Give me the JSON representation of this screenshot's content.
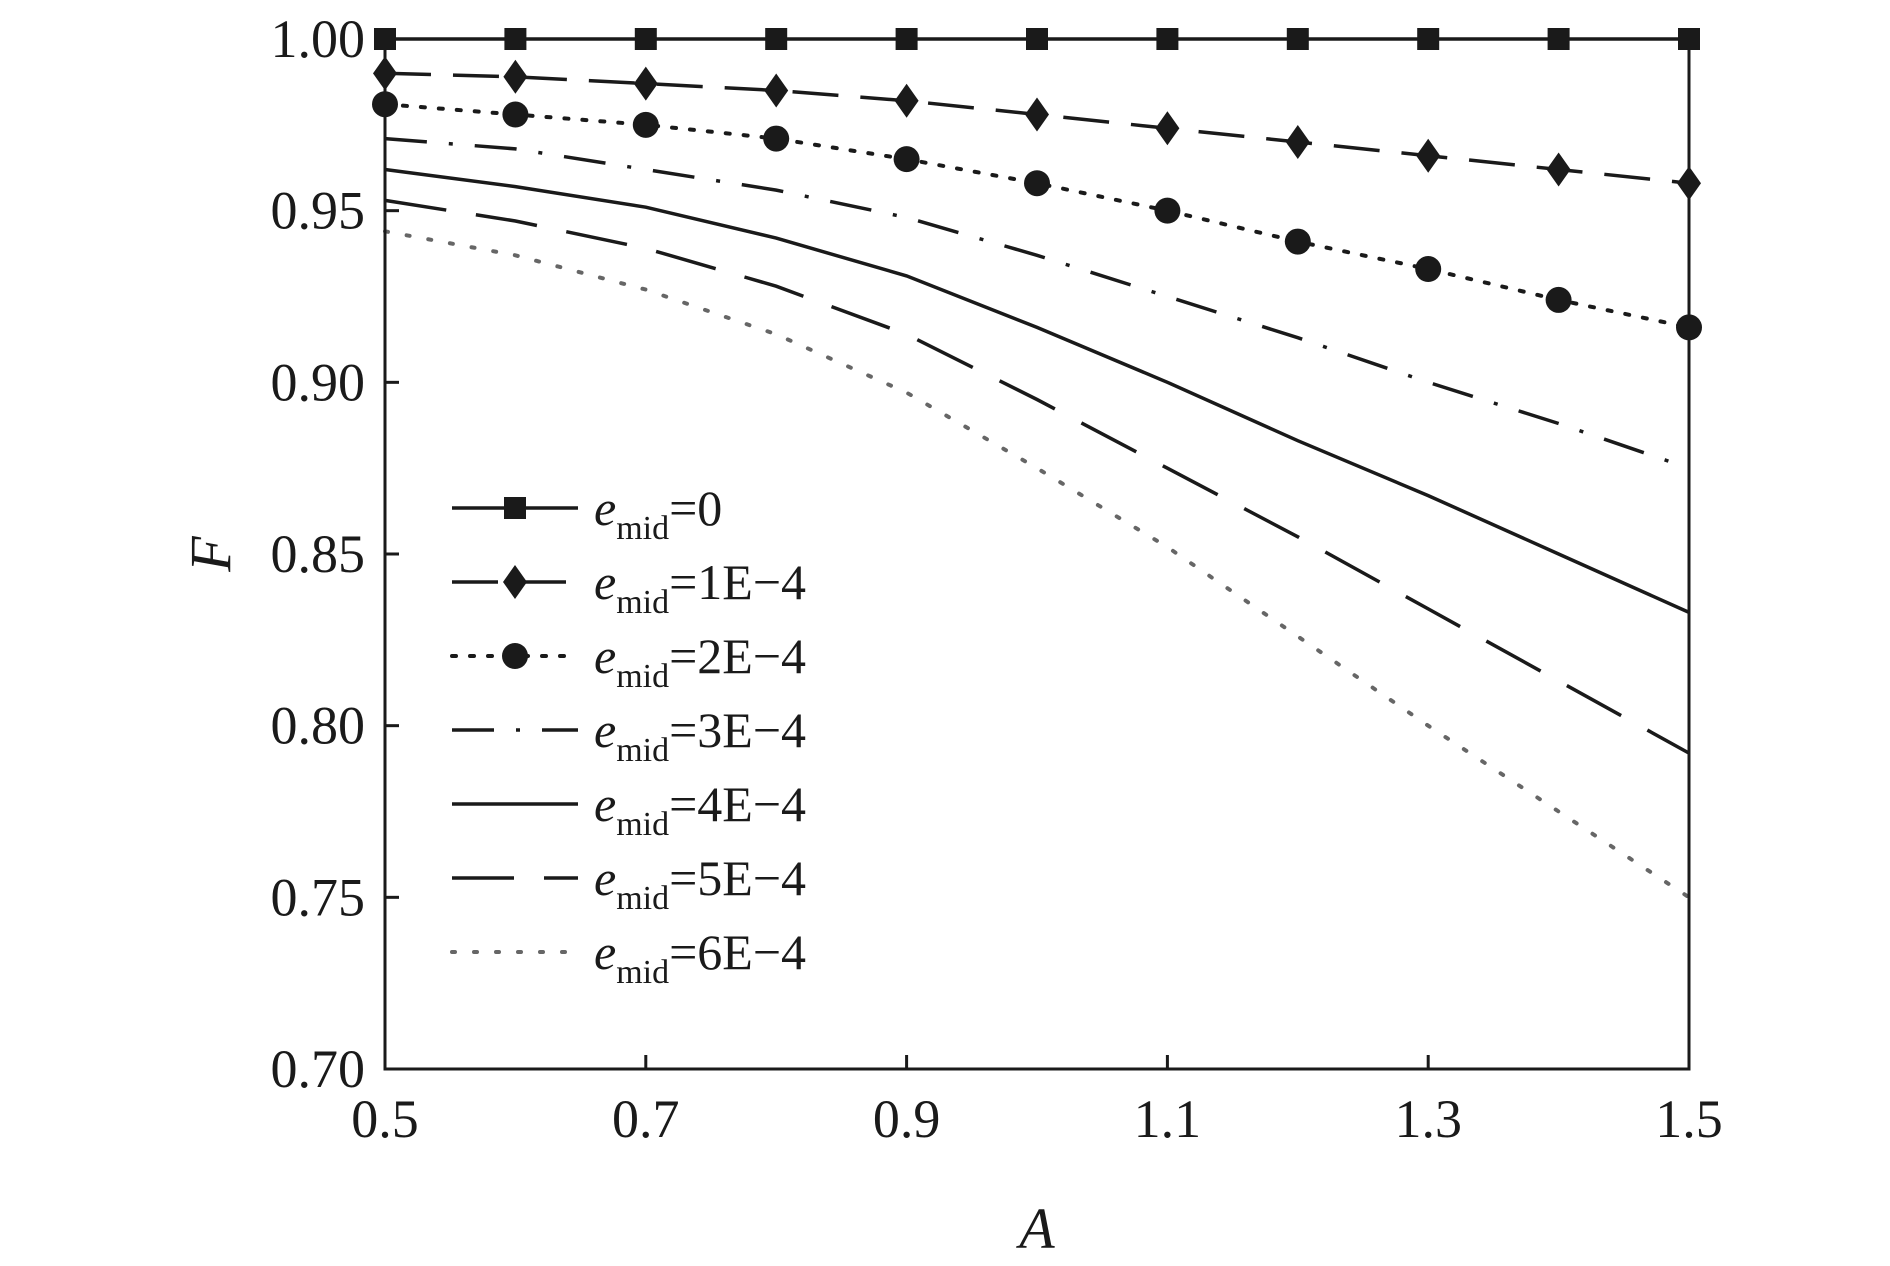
{
  "chart_data": {
    "type": "line",
    "title": "",
    "xlabel": "A",
    "ylabel": "F",
    "xlim": [
      0.5,
      1.5
    ],
    "ylim": [
      0.7,
      1.0
    ],
    "xticks": [
      "0.5",
      "0.7",
      "0.9",
      "1.1",
      "1.3",
      "1.5"
    ],
    "yticks": [
      "0.70",
      "0.75",
      "0.80",
      "0.85",
      "0.90",
      "0.95",
      "1.00"
    ],
    "grid": false,
    "legend_position": "left",
    "x": [
      0.5,
      0.6,
      0.7,
      0.8,
      0.9,
      1.0,
      1.1,
      1.2,
      1.3,
      1.4,
      1.5
    ],
    "series": [
      {
        "name": "e_mid=0",
        "label_var": "e",
        "label_sub": "mid",
        "label_val": "=0",
        "line": "solid",
        "marker": "square",
        "values": [
          1.0,
          1.0,
          1.0,
          1.0,
          1.0,
          1.0,
          1.0,
          1.0,
          1.0,
          1.0,
          1.0
        ]
      },
      {
        "name": "e_mid=1E−4",
        "label_var": "e",
        "label_sub": "mid",
        "label_val": "=1E−4",
        "line": "dash",
        "marker": "diamond",
        "values": [
          0.99,
          0.989,
          0.987,
          0.985,
          0.982,
          0.978,
          0.974,
          0.97,
          0.966,
          0.962,
          0.958
        ]
      },
      {
        "name": "e_mid=2E−4",
        "label_var": "e",
        "label_sub": "mid",
        "label_val": "=2E−4",
        "line": "dot",
        "marker": "circle",
        "values": [
          0.981,
          0.978,
          0.975,
          0.971,
          0.965,
          0.958,
          0.95,
          0.941,
          0.933,
          0.924,
          0.916
        ]
      },
      {
        "name": "e_mid=3E−4",
        "label_var": "e",
        "label_sub": "mid",
        "label_val": "=3E−4",
        "line": "dashdot",
        "marker": "none",
        "values": [
          0.971,
          0.968,
          0.962,
          0.956,
          0.948,
          0.937,
          0.925,
          0.913,
          0.9,
          0.888,
          0.875
        ]
      },
      {
        "name": "e_mid=4E−4",
        "label_var": "e",
        "label_sub": "mid",
        "label_val": "=4E−4",
        "line": "solid",
        "marker": "none",
        "values": [
          0.962,
          0.957,
          0.951,
          0.942,
          0.931,
          0.916,
          0.9,
          0.883,
          0.867,
          0.85,
          0.833
        ]
      },
      {
        "name": "e_mid=5E−4",
        "label_var": "e",
        "label_sub": "mid",
        "label_val": "=5E−4",
        "line": "longdash",
        "marker": "none",
        "values": [
          0.953,
          0.947,
          0.939,
          0.928,
          0.914,
          0.895,
          0.875,
          0.855,
          0.834,
          0.813,
          0.792
        ]
      },
      {
        "name": "e_mid=6E−4",
        "label_var": "e",
        "label_sub": "mid",
        "label_val": "=6E−4",
        "line": "sparsedot",
        "marker": "none",
        "values": [
          0.944,
          0.937,
          0.927,
          0.914,
          0.897,
          0.875,
          0.852,
          0.826,
          0.8,
          0.775,
          0.75
        ]
      }
    ]
  },
  "colors": {
    "ink": "#1a1a1a",
    "light_dot": "#666666",
    "background": "#ffffff"
  }
}
